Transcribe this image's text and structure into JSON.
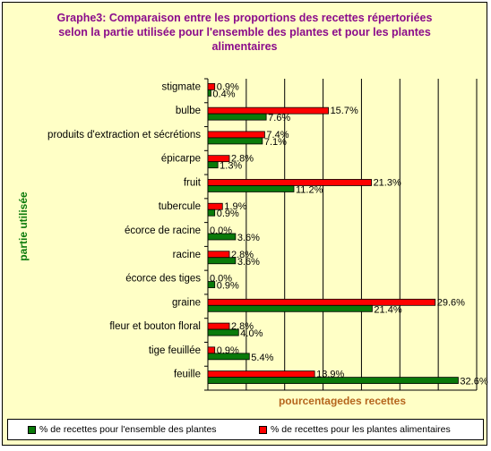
{
  "title_lines": [
    "Graphe3: Comparaison entre les proportions des recettes répertoriées",
    "selon la partie utilisée pour l'ensemble des plantes et pour les plantes",
    "alimentaires"
  ],
  "colors": {
    "background": "#ffffc6",
    "green": "#0a7a0a",
    "red": "#ff0000",
    "title": "#8b0c8b",
    "xlabel": "#b5651d"
  },
  "chart_data": {
    "type": "bar",
    "orientation": "horizontal",
    "title": "Graphe3: Comparaison entre les proportions des recettes répertoriées selon la partie utilisée pour l'ensemble des plantes et pour les plantes alimentaires",
    "xlabel": "pourcentagedes recettes",
    "ylabel": "partie utilisée",
    "categories": [
      "stigmate",
      "bulbe",
      "produits d'extraction et sécrétions",
      "épicarpe",
      "fruit",
      "tubercule",
      "écorce de racine",
      "racine",
      "écorce des tiges",
      "graine",
      "fleur et bouton floral",
      "tige feuillée",
      "feuille"
    ],
    "series": [
      {
        "name": "% de recettes pour les plantes alimentaires",
        "values": [
          0.9,
          15.7,
          7.4,
          2.8,
          21.3,
          1.9,
          0.0,
          2.8,
          0.0,
          29.6,
          2.8,
          0.9,
          13.9
        ],
        "labels": [
          "0.9%",
          "15.7%",
          "7.4%",
          "2.8%",
          "21.3%",
          "1.9%",
          "0.0%",
          "2.8%",
          "0.0%",
          "29.6%",
          "2.8%",
          "0.9%",
          "13.9%"
        ]
      },
      {
        "name": "% de recettes pour l'ensemble des plantes",
        "values": [
          0.4,
          7.6,
          7.1,
          1.3,
          11.2,
          0.9,
          3.6,
          3.6,
          0.9,
          21.4,
          4.0,
          5.4,
          32.6
        ],
        "labels": [
          "0.4%",
          "7.6%",
          "7.1%",
          "1.3%",
          "11.2%",
          "0.9%",
          "3.6%",
          "3.6%",
          "0.9%",
          "21.4%",
          "4.0%",
          "5.4%",
          "32.6%"
        ]
      }
    ],
    "xlim": [
      0,
      35
    ],
    "grid": true,
    "legend_position": "bottom"
  },
  "legend": {
    "green_label": "% de recettes pour l'ensemble des plantes",
    "red_label": "% de recettes pour les plantes alimentaires"
  }
}
